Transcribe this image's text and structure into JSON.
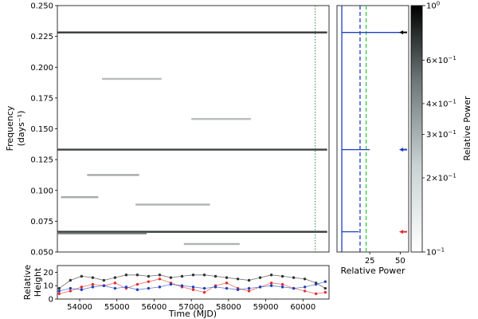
{
  "chart_data": [
    {
      "type": "heatmap",
      "xlim": [
        53400,
        60700
      ],
      "ylim": [
        0.05,
        0.25
      ],
      "ylabel_line1": "Frequency",
      "ylabel_line2": "(days⁻¹)",
      "yticks": [
        0.05,
        0.075,
        0.1,
        0.125,
        0.15,
        0.175,
        0.2,
        0.225,
        0.25
      ],
      "ytick_labels": [
        "0.050",
        "0.075",
        "0.100",
        "0.125",
        "0.150",
        "0.175",
        "0.200",
        "0.225",
        "0.250"
      ],
      "vlines": [
        {
          "x": 60330,
          "color": "#2e7d32",
          "style": "dotted"
        }
      ],
      "bands": [
        {
          "freq": 0.2282,
          "x0": 53400,
          "x1": 60650,
          "strength": 0.9
        },
        {
          "freq": 0.1331,
          "x0": 53400,
          "x1": 60650,
          "strength": 0.85
        },
        {
          "freq": 0.0664,
          "x0": 53400,
          "x1": 60650,
          "strength": 0.9
        },
        {
          "freq": 0.0652,
          "x0": 53400,
          "x1": 55800,
          "strength": 0.6
        },
        {
          "freq": 0.1125,
          "x0": 54200,
          "x1": 55600,
          "strength": 0.35
        },
        {
          "freq": 0.0885,
          "x0": 55500,
          "x1": 57500,
          "strength": 0.3
        },
        {
          "freq": 0.1905,
          "x0": 54600,
          "x1": 56200,
          "strength": 0.25
        },
        {
          "freq": 0.158,
          "x0": 57000,
          "x1": 58600,
          "strength": 0.25
        },
        {
          "freq": 0.0565,
          "x0": 56800,
          "x1": 58300,
          "strength": 0.3
        },
        {
          "freq": 0.0945,
          "x0": 53500,
          "x1": 54500,
          "strength": 0.35
        }
      ]
    },
    {
      "type": "line",
      "xlabel": "Relative Power",
      "xlim": [
        0,
        55
      ],
      "xticks": [
        25,
        50
      ],
      "xtick_labels": [
        "25",
        "50"
      ],
      "thresholds": [
        {
          "x": 17,
          "color": "#1f3fbf",
          "style": "dashed"
        },
        {
          "x": 22,
          "color": "#2ecc40",
          "style": "dashed"
        }
      ],
      "peaks": [
        {
          "freq": 0.2282,
          "power": 50,
          "marker_color": "#000000"
        },
        {
          "freq": 0.1331,
          "power": 25,
          "marker_color": "#1f3fbf"
        },
        {
          "freq": 0.0664,
          "power": 16,
          "marker_color": "#e03030"
        }
      ]
    },
    {
      "type": "colorbar",
      "label": "Relative Power",
      "scale": "log",
      "range": [
        0.1,
        1
      ],
      "ticks": [
        0.2,
        0.3,
        0.4,
        0.6
      ],
      "major_tick_labels": [
        {
          "value": 1,
          "base": "10",
          "exp": "0"
        },
        {
          "value": 0.1,
          "base": "10",
          "exp": "−1"
        }
      ],
      "minor_tick_labels": [
        {
          "value": 0.6,
          "mant": "6×10",
          "exp": "−1"
        },
        {
          "value": 0.4,
          "mant": "4×10",
          "exp": "−1"
        },
        {
          "value": 0.3,
          "mant": "3×10",
          "exp": "−1"
        },
        {
          "value": 0.2,
          "mant": "2×10",
          "exp": "−1"
        }
      ]
    },
    {
      "type": "scatter",
      "xlabel": "Time (MJD)",
      "ylabel_line1": "Relative",
      "ylabel_line2": "Height",
      "xlim": [
        53400,
        60700
      ],
      "ylim": [
        0,
        25
      ],
      "xticks": [
        54000,
        55000,
        56000,
        57000,
        58000,
        59000,
        60000
      ],
      "xtick_labels": [
        "54000",
        "55000",
        "56000",
        "57000",
        "58000",
        "59000",
        "60000"
      ],
      "yticks": [
        0,
        10,
        20
      ],
      "ytick_labels": [
        "0",
        "10",
        "20"
      ],
      "series": [
        {
          "color": "#333333",
          "x": [
            53450,
            53750,
            54050,
            54350,
            54650,
            54950,
            55250,
            55550,
            55850,
            56150,
            56450,
            56750,
            57050,
            57350,
            57650,
            57950,
            58250,
            58550,
            58850,
            59150,
            59450,
            59750,
            60050,
            60350,
            60600
          ],
          "y": [
            8,
            14,
            17,
            16,
            14,
            16,
            18,
            18,
            17,
            18,
            16,
            17,
            18,
            18,
            17,
            16,
            15,
            14,
            16,
            18,
            17,
            16,
            15,
            12,
            8
          ]
        },
        {
          "color": "#e03030",
          "x": [
            53450,
            53750,
            54050,
            54350,
            54650,
            54950,
            55250,
            55550,
            55850,
            56150,
            56450,
            56750,
            57050,
            57350,
            57650,
            57950,
            58250,
            58550,
            58850,
            59150,
            59450,
            59750,
            60050,
            60350,
            60600
          ],
          "y": [
            4,
            6,
            9,
            11,
            10,
            12,
            8,
            11,
            13,
            15,
            12,
            9,
            7,
            5,
            10,
            12,
            8,
            6,
            9,
            12,
            11,
            8,
            6,
            4,
            5
          ]
        },
        {
          "color": "#1f3fbf",
          "x": [
            53450,
            53750,
            54050,
            54350,
            54650,
            54950,
            55250,
            55550,
            55850,
            56150,
            56450,
            56750,
            57050,
            57350,
            57650,
            57950,
            58250,
            58550,
            58850,
            59150,
            59450,
            59750,
            60050,
            60350,
            60600
          ],
          "y": [
            6,
            8,
            7,
            9,
            10,
            8,
            9,
            7,
            8,
            9,
            11,
            10,
            9,
            8,
            9,
            8,
            7,
            8,
            9,
            10,
            9,
            8,
            9,
            11,
            13
          ]
        }
      ]
    }
  ]
}
